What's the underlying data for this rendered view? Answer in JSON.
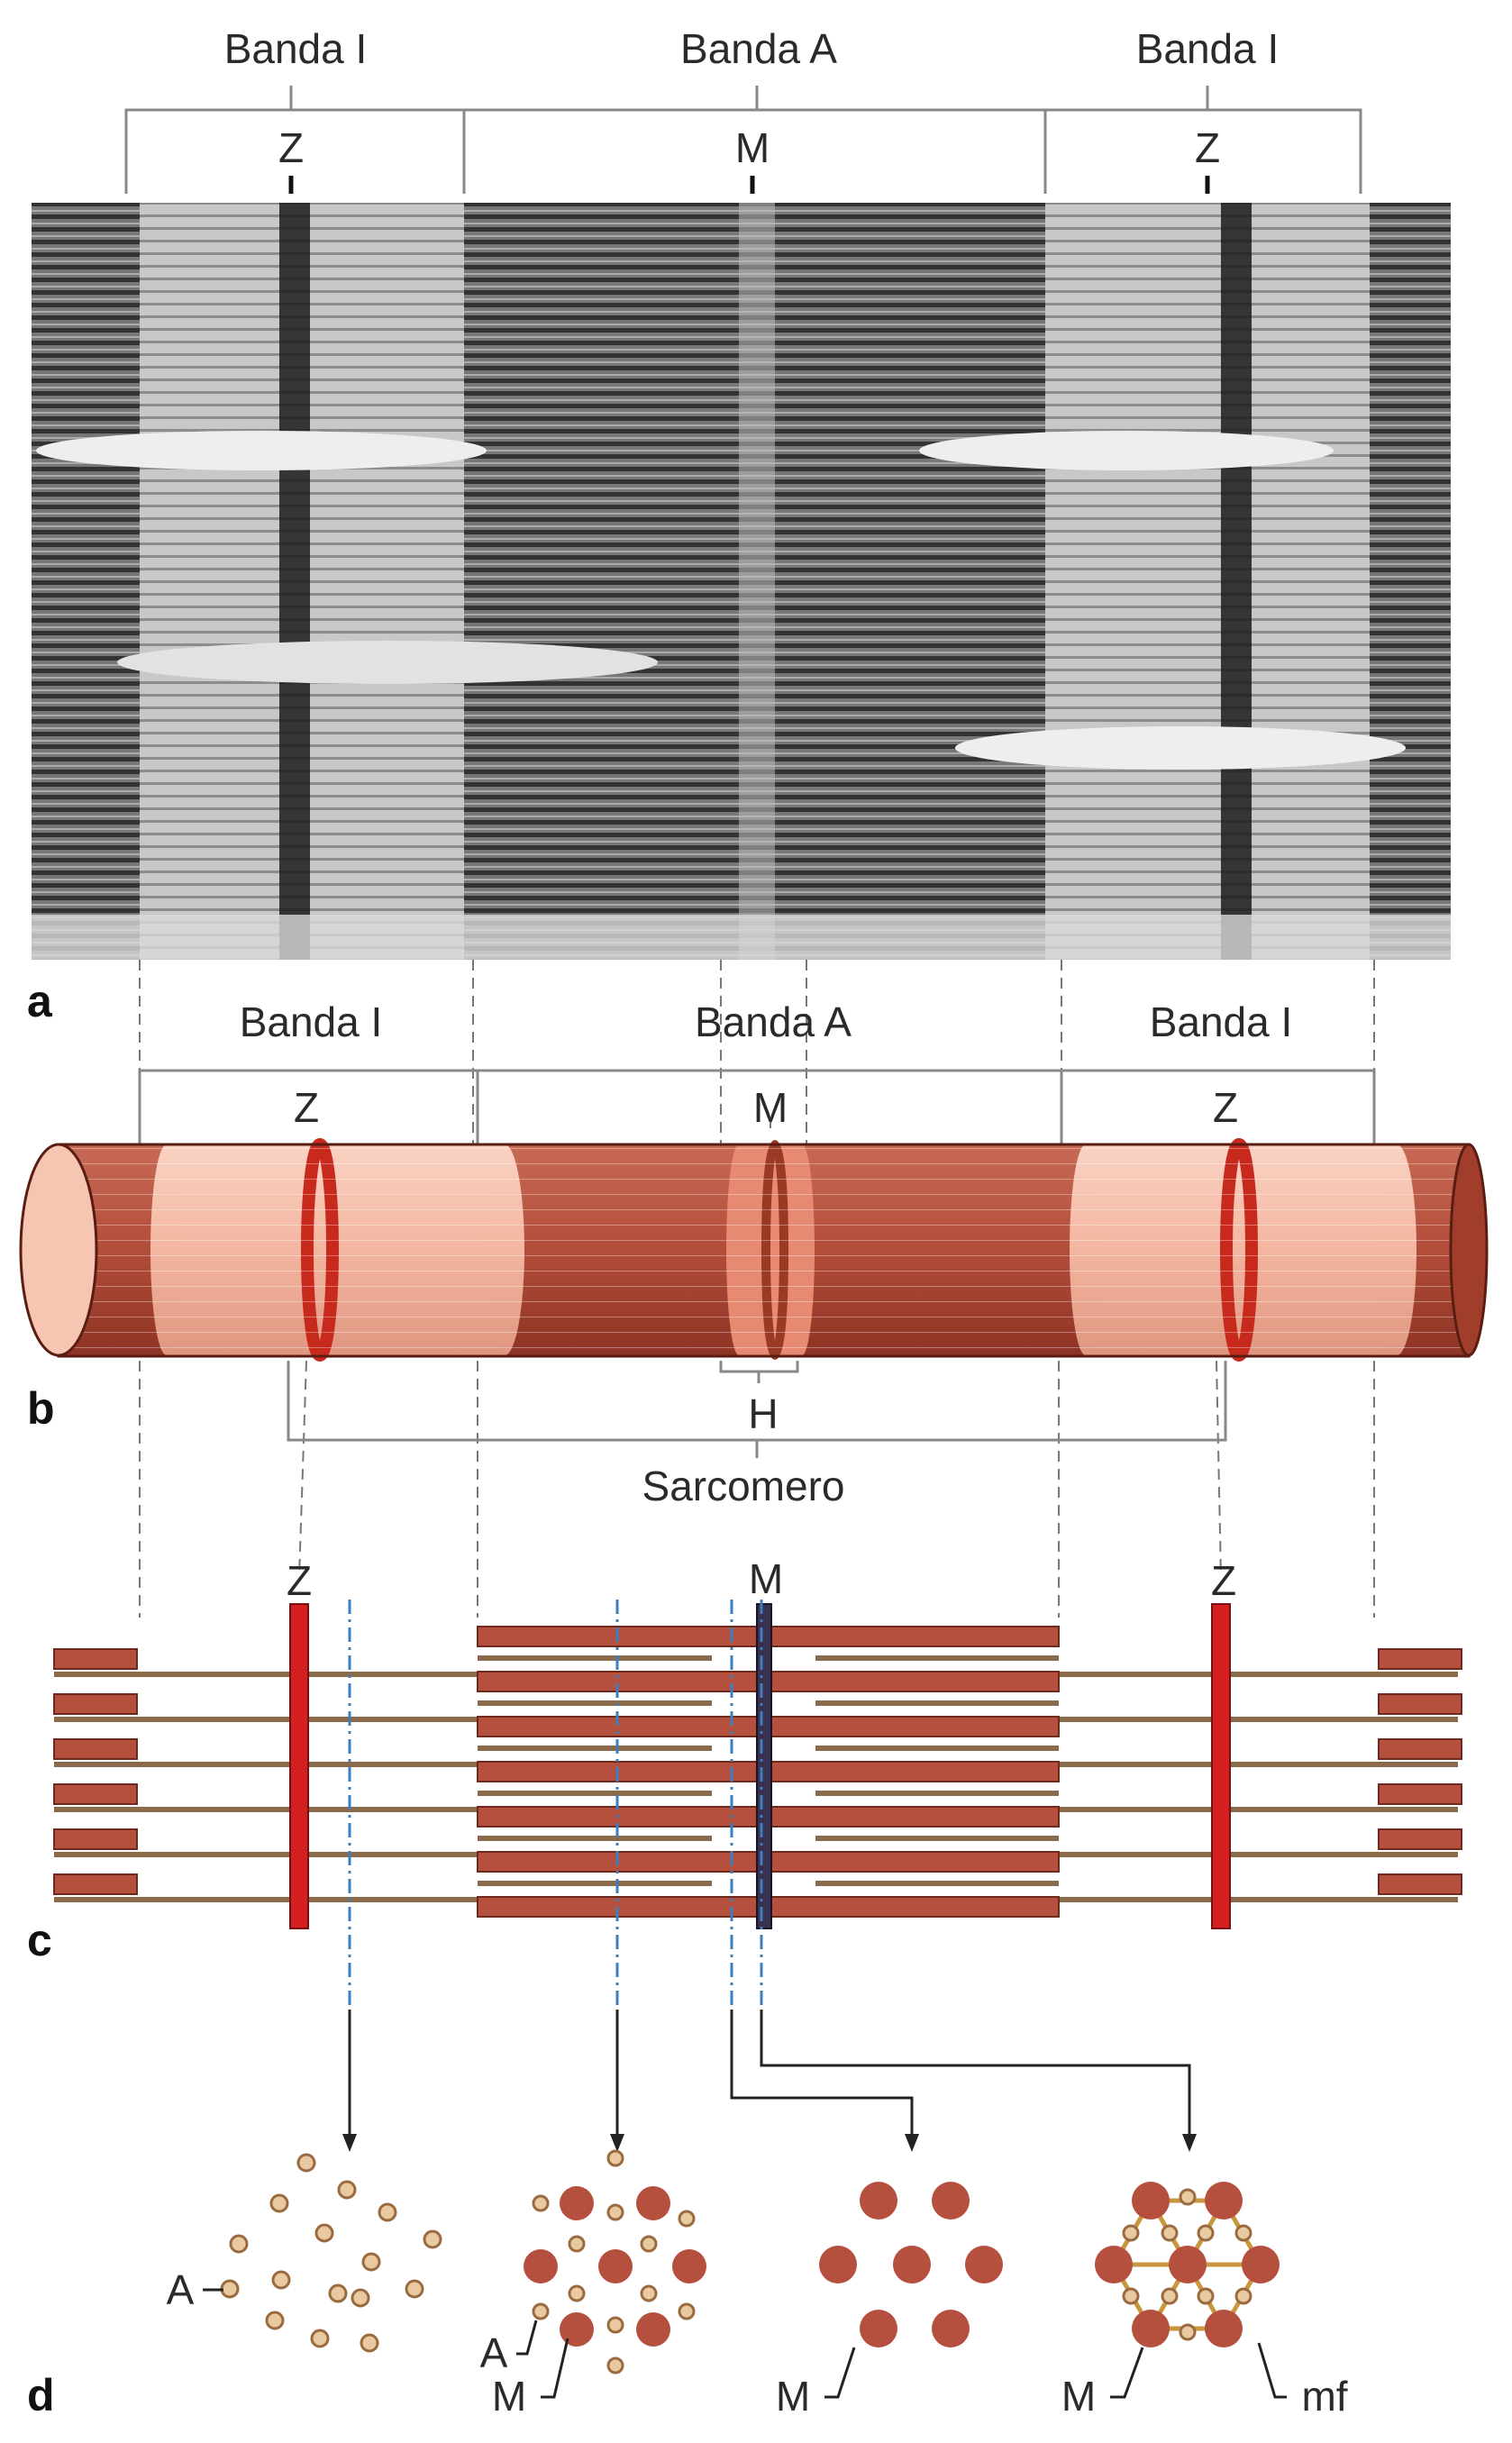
{
  "panel_a": {
    "letter": "a",
    "band_labels": [
      "Banda I",
      "Banda A",
      "Banda I"
    ],
    "line_labels": [
      "Z",
      "M",
      "Z"
    ]
  },
  "panel_b": {
    "letter": "b",
    "band_labels": [
      "Banda I",
      "Banda A",
      "Banda I"
    ],
    "line_labels": [
      "Z",
      "M",
      "Z"
    ],
    "h_label": "H",
    "sarcomere_label": "Sarcomero"
  },
  "panel_c": {
    "letter": "c",
    "line_labels": [
      "Z",
      "M",
      "Z"
    ]
  },
  "panel_d": {
    "letter": "d",
    "labels": [
      "A",
      "A",
      "M",
      "M",
      "M",
      "mf"
    ]
  },
  "colors": {
    "myosin": "#b5503e",
    "actin": "#8a6a4a",
    "z_disc": "#d42020",
    "m_line": "#3a3050",
    "actin_dot": "#e8c9a0",
    "cyl_dark": "#a0402e",
    "cyl_light": "#f3bca8",
    "guide": "#3a7fc1"
  }
}
